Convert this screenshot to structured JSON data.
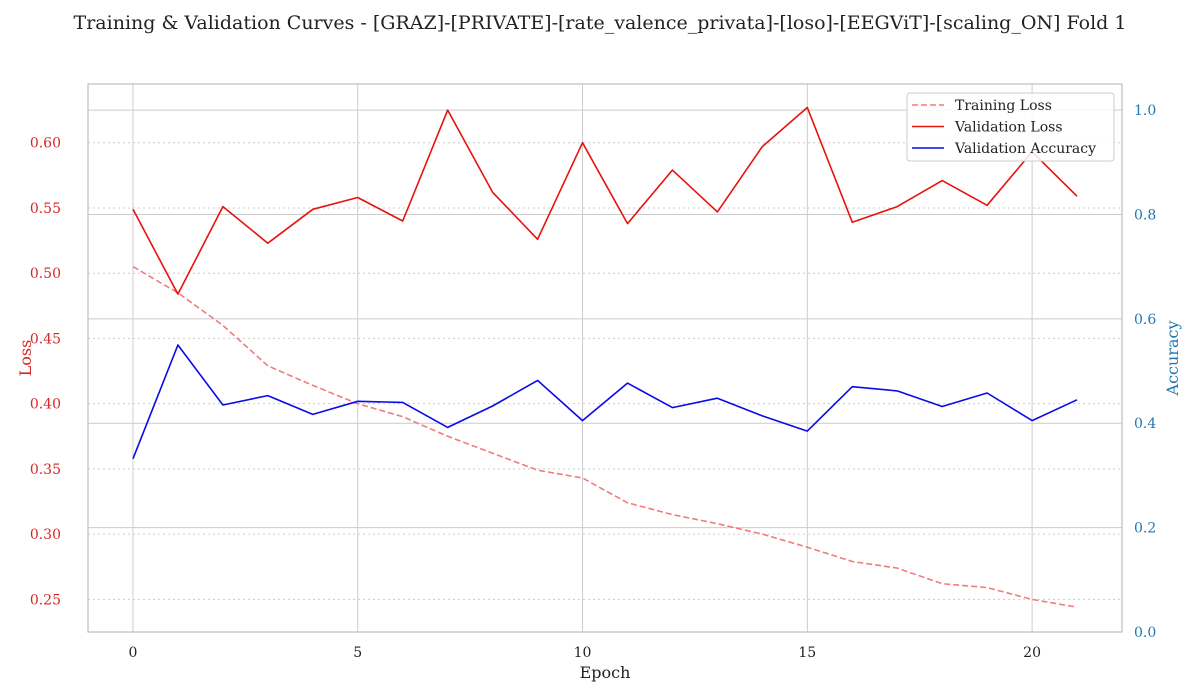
{
  "chart_data": {
    "type": "line",
    "title": "Training & Validation Curves - [GRAZ]-[PRIVATE]-[rate_valence_privata]-[loso]-[EEGViT]-[scaling_ON] Fold 1",
    "xlabel": "Epoch",
    "ylabel_left": "Loss",
    "ylabel_right": "Accuracy",
    "xlim": [
      -1,
      22
    ],
    "ylim_left": [
      0.225,
      0.645
    ],
    "ylim_right": [
      0.0,
      1.05
    ],
    "x_ticks": [
      0,
      5,
      10,
      15,
      20
    ],
    "y_left_ticks": [
      0.25,
      0.3,
      0.35,
      0.4,
      0.45,
      0.5,
      0.55,
      0.6
    ],
    "y_right_ticks": [
      0.0,
      0.2,
      0.4,
      0.6,
      0.8,
      1.0
    ],
    "grid": true,
    "legend_position": "top-right",
    "x": [
      0,
      1,
      2,
      3,
      4,
      5,
      6,
      7,
      8,
      9,
      10,
      11,
      12,
      13,
      14,
      15,
      16,
      17,
      18,
      19,
      20,
      21
    ],
    "series": [
      {
        "name": "Training Loss",
        "axis": "left",
        "style": "dashed",
        "color": "#f07c7c",
        "values": [
          0.505,
          0.485,
          0.46,
          0.429,
          0.414,
          0.4,
          0.39,
          0.375,
          0.362,
          0.349,
          0.343,
          0.324,
          0.315,
          0.308,
          0.3,
          0.29,
          0.279,
          0.274,
          0.262,
          0.259,
          0.25,
          0.244
        ]
      },
      {
        "name": "Validation Loss",
        "axis": "left",
        "style": "solid",
        "color": "#e8120c",
        "values": [
          0.549,
          0.484,
          0.551,
          0.523,
          0.549,
          0.558,
          0.54,
          0.625,
          0.562,
          0.526,
          0.6,
          0.538,
          0.579,
          0.547,
          0.597,
          0.627,
          0.539,
          0.551,
          0.571,
          0.552,
          0.593,
          0.559
        ]
      },
      {
        "name": "Validation Accuracy",
        "axis": "right",
        "style": "solid",
        "color": "#0a0ae8",
        "values": [
          0.332,
          0.55,
          0.435,
          0.453,
          0.417,
          0.442,
          0.44,
          0.392,
          0.433,
          0.482,
          0.405,
          0.477,
          0.43,
          0.448,
          0.414,
          0.385,
          0.47,
          0.462,
          0.432,
          0.458,
          0.405,
          0.445
        ]
      }
    ],
    "colors": {
      "left_axis": "#d62728",
      "right_axis": "#1f77b4",
      "frame": "#bfbfbf",
      "grid": "#cccccc"
    }
  }
}
